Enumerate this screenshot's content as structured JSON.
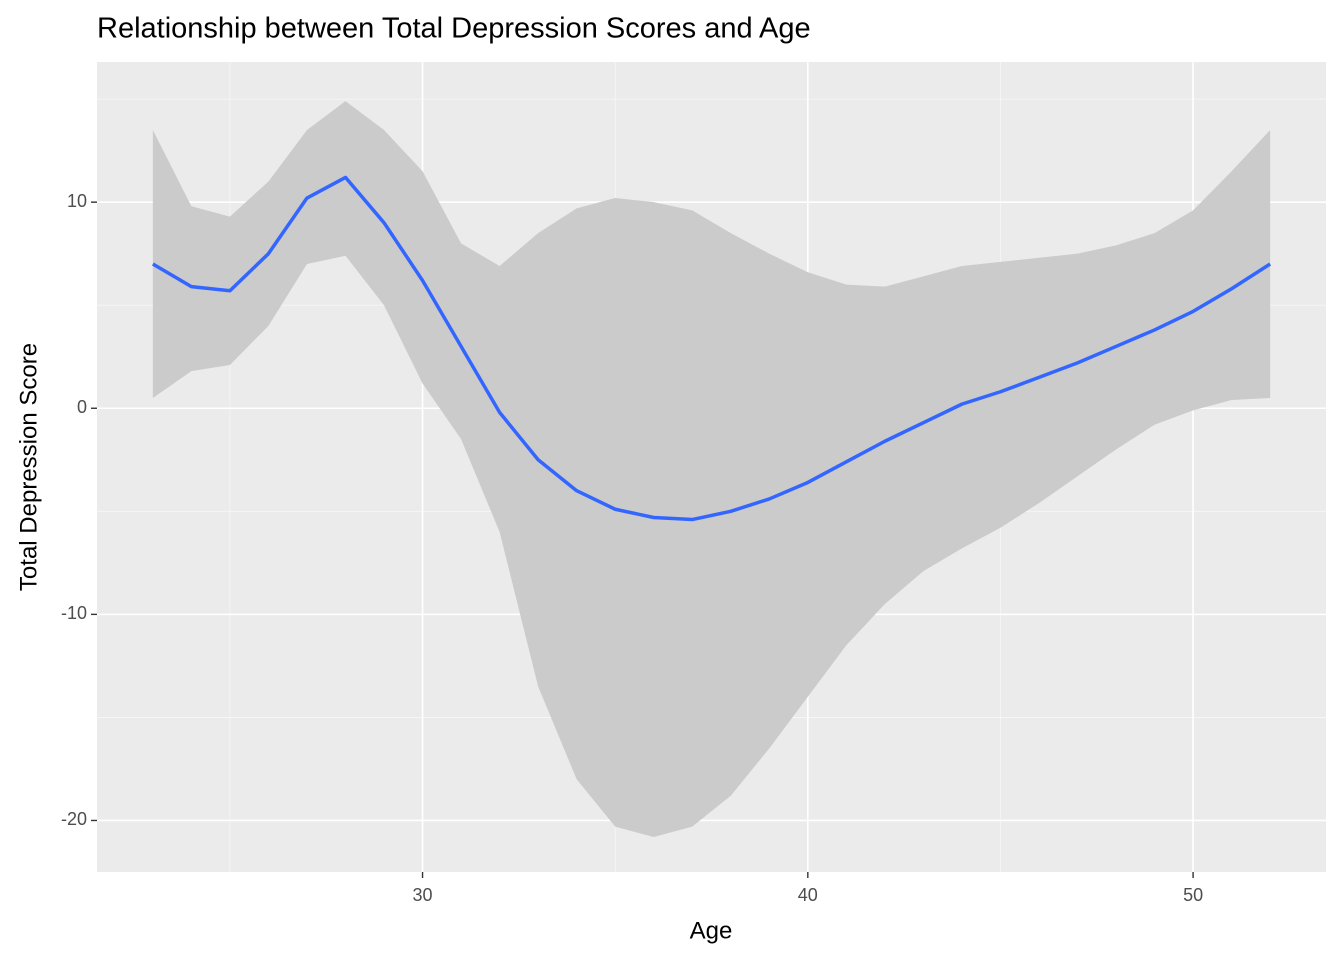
{
  "chart_data": {
    "type": "line",
    "title": "Relationship between Total Depression Scores and Age",
    "x_label": "Age",
    "y_label": "Total Depression Score",
    "x": [
      23,
      24,
      25,
      26,
      27,
      28,
      29,
      30,
      31,
      32,
      33,
      34,
      35,
      36,
      37,
      38,
      39,
      40,
      41,
      42,
      43,
      44,
      45,
      46,
      47,
      48,
      49,
      50,
      51,
      52
    ],
    "series": [
      {
        "color": "#3366ff",
        "band_color": "#cbcbcb",
        "values": [
          7.0,
          5.9,
          5.7,
          7.5,
          10.2,
          11.2,
          9.0,
          6.2,
          3.0,
          -0.2,
          -2.5,
          -4.0,
          -4.9,
          -5.3,
          -5.4,
          -5.0,
          -4.4,
          -3.6,
          -2.6,
          -1.6,
          -0.7,
          0.2,
          0.8,
          1.5,
          2.2,
          3.0,
          3.8,
          4.7,
          5.8,
          7.0
        ],
        "upper": [
          13.5,
          9.8,
          9.3,
          11.0,
          13.5,
          14.9,
          13.5,
          11.5,
          8.0,
          6.9,
          8.5,
          9.7,
          10.2,
          10.0,
          9.6,
          8.5,
          7.5,
          6.6,
          6.0,
          5.9,
          6.4,
          6.9,
          7.1,
          7.3,
          7.5,
          7.9,
          8.5,
          9.6,
          11.5,
          13.5
        ],
        "lower": [
          0.5,
          1.8,
          2.1,
          4.0,
          7.0,
          7.4,
          5.0,
          1.2,
          -1.5,
          -6.0,
          -13.5,
          -18.0,
          -20.3,
          -20.8,
          -20.3,
          -18.8,
          -16.5,
          -14.0,
          -11.5,
          -9.5,
          -7.9,
          -6.8,
          -5.8,
          -4.6,
          -3.3,
          -2.0,
          -0.8,
          -0.1,
          0.4,
          0.5
        ]
      }
    ],
    "xlim": [
      21.55,
      53.45
    ],
    "ylim": [
      -22.5,
      16.8
    ],
    "xticks": [
      30,
      40,
      50
    ],
    "yticks": [
      -20,
      -10,
      0,
      10
    ],
    "x_minor_ticks": [
      25,
      35,
      45
    ],
    "y_minor_ticks": [
      -15,
      -5,
      5,
      15
    ],
    "grid": true,
    "panel_color": "#ebebeb"
  }
}
